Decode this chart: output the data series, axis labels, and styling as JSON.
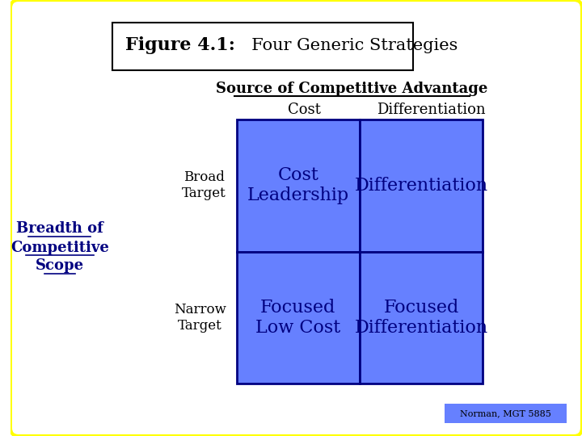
{
  "title_bold": "Figure 4.1:",
  "title_regular": "  Four Generic Strategies",
  "source_title": "Source of Competitive Advantage",
  "col_labels": [
    "Cost",
    "Differentiation"
  ],
  "row_labels": [
    "Broad\nTarget",
    "Narrow\nTarget"
  ],
  "left_label_lines": [
    "Breadth of",
    "Competitive",
    "Scope"
  ],
  "cell_texts": [
    [
      "Cost\nLeadership",
      "Differentiation"
    ],
    [
      "Focused\nLow Cost",
      "Focused\nDifferentiation"
    ]
  ],
  "cell_color": "#6680FF",
  "bg_color": "#FFFFFF",
  "outer_border_color": "#FFFF00",
  "title_box_color": "#000000",
  "footer_text": "Norman, MGT 5885",
  "footer_bg": "#6680FF",
  "grid_color": "#000080",
  "cell_text_color": "#000080",
  "col_label_color": "#000000",
  "row_label_color": "#000000",
  "left_label_color": "#000080"
}
